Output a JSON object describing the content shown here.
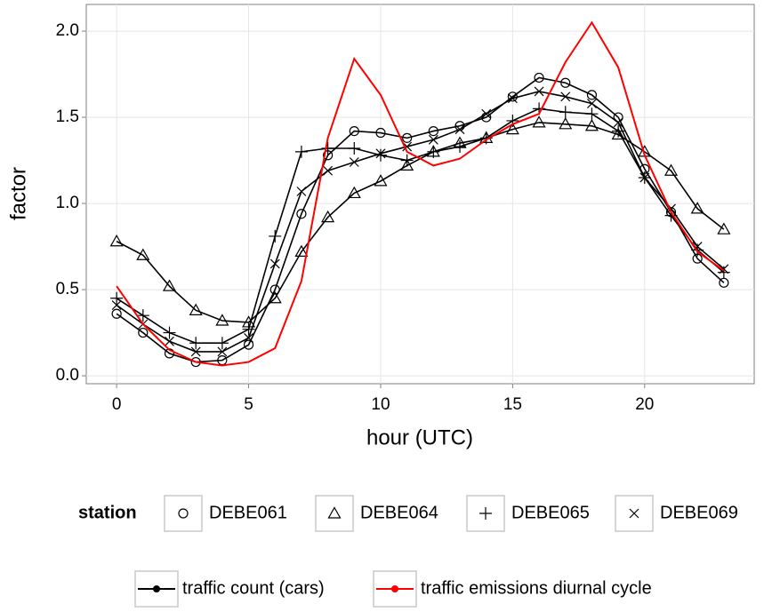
{
  "chart_data": {
    "type": "line",
    "x_label": "hour (UTC)",
    "y_label": "factor",
    "x": [
      0,
      1,
      2,
      3,
      4,
      5,
      6,
      7,
      8,
      9,
      10,
      11,
      12,
      13,
      14,
      15,
      16,
      17,
      18,
      19,
      20,
      21,
      22,
      23
    ],
    "xlim": [
      -1.15,
      24.15
    ],
    "ylim": [
      -0.046,
      2.155
    ],
    "xticks": [
      0,
      5,
      10,
      15,
      20
    ],
    "yticks": [
      {
        "value": 0,
        "label": "0.0"
      },
      {
        "value": 0.5,
        "label": "0.5"
      },
      {
        "value": 1,
        "label": "1.0"
      },
      {
        "value": 1.5,
        "label": "1.5"
      },
      {
        "value": 2,
        "label": "2.0"
      }
    ],
    "grid": true,
    "station_legend_title": "station",
    "traffic_count_label": "traffic count (cars)",
    "series": [
      {
        "name": "DEBE061",
        "color": "#000000",
        "marker": "circle",
        "values": [
          0.36,
          0.25,
          0.13,
          0.08,
          0.09,
          0.18,
          0.5,
          0.94,
          1.28,
          1.42,
          1.41,
          1.38,
          1.42,
          1.45,
          1.5,
          1.62,
          1.73,
          1.7,
          1.63,
          1.5,
          1.2,
          0.95,
          0.68,
          0.54
        ]
      },
      {
        "name": "DEBE064",
        "color": "#000000",
        "marker": "triangle",
        "values": [
          0.78,
          0.7,
          0.52,
          0.38,
          0.32,
          0.31,
          0.45,
          0.72,
          0.92,
          1.06,
          1.13,
          1.22,
          1.3,
          1.35,
          1.38,
          1.43,
          1.47,
          1.46,
          1.45,
          1.4,
          1.3,
          1.19,
          0.97,
          0.85
        ]
      },
      {
        "name": "DEBE065",
        "color": "#000000",
        "marker": "plus",
        "values": [
          0.45,
          0.35,
          0.25,
          0.19,
          0.19,
          0.27,
          0.81,
          1.3,
          1.32,
          1.32,
          1.28,
          1.25,
          1.3,
          1.33,
          1.38,
          1.48,
          1.55,
          1.53,
          1.52,
          1.42,
          1.15,
          0.93,
          0.73,
          0.6
        ]
      },
      {
        "name": "DEBE069",
        "color": "#000000",
        "marker": "cross",
        "values": [
          0.41,
          0.3,
          0.2,
          0.14,
          0.14,
          0.22,
          0.65,
          1.07,
          1.19,
          1.24,
          1.29,
          1.33,
          1.37,
          1.43,
          1.52,
          1.61,
          1.65,
          1.62,
          1.58,
          1.47,
          1.15,
          0.97,
          0.75,
          0.62
        ]
      },
      {
        "name": "traffic emissions diurnal cycle",
        "color": "#ff0000",
        "marker": "none",
        "values": [
          0.52,
          0.3,
          0.15,
          0.08,
          0.06,
          0.08,
          0.16,
          0.55,
          1.38,
          1.84,
          1.63,
          1.3,
          1.22,
          1.26,
          1.37,
          1.46,
          1.52,
          1.82,
          2.05,
          1.79,
          1.28,
          0.95,
          0.72,
          0.61
        ]
      }
    ]
  }
}
